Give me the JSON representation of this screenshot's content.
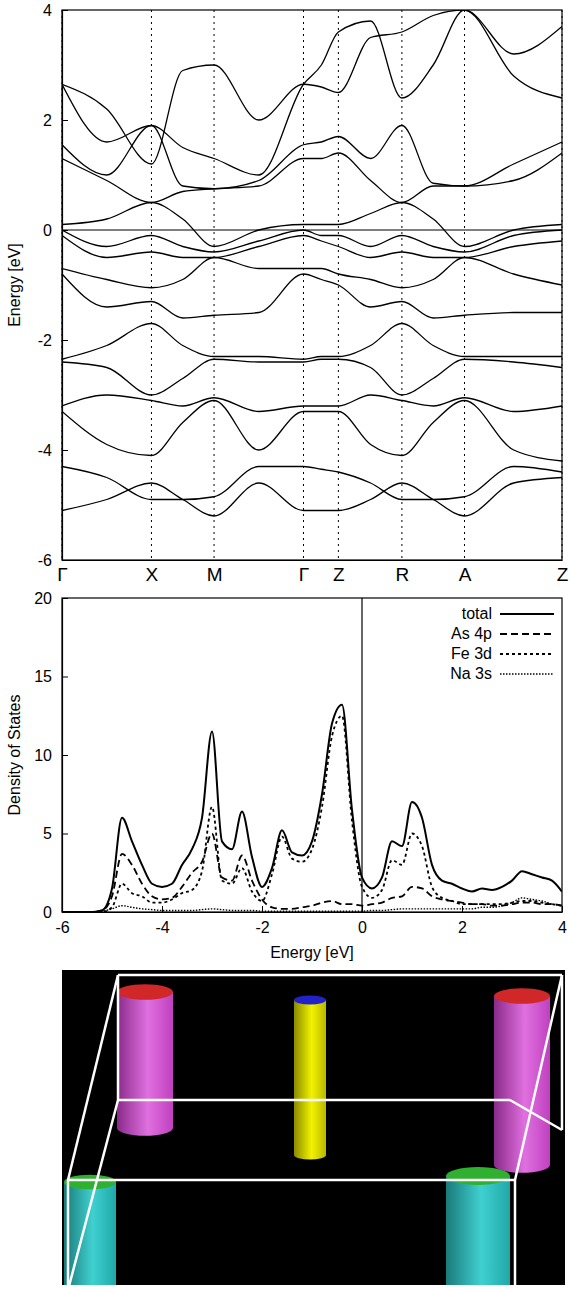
{
  "chart_data": [
    {
      "type": "line",
      "y_label": "Energy [eV]",
      "color": "#000000",
      "grid": "x",
      "hline": 0,
      "xlim": [
        0,
        5.59
      ],
      "xticks": [
        {
          "value": 0,
          "label": "Γ"
        },
        {
          "value": 1,
          "label": "X"
        },
        {
          "value": 1.7,
          "label": "M"
        },
        {
          "value": 2.7,
          "label": "Γ"
        },
        {
          "value": 3.09,
          "label": "Z"
        },
        {
          "value": 3.8,
          "label": "R"
        },
        {
          "value": 4.5,
          "label": "A"
        },
        {
          "value": 5.59,
          "label": "Z"
        }
      ],
      "ylim": [
        -6,
        4
      ],
      "yticks": [
        -6,
        -4,
        -2,
        0,
        2,
        4
      ],
      "x": [
        0,
        0.5,
        1,
        1.35,
        1.7,
        2.2,
        2.7,
        2.9,
        3.09,
        3.45,
        3.8,
        4.15,
        4.5,
        5.05,
        5.59
      ],
      "series": [
        {
          "values": [
            -5.1,
            -4.9,
            -4.6,
            -4.9,
            -5.2,
            -4.6,
            -5.1,
            -5.1,
            -5.1,
            -4.9,
            -4.6,
            -4.9,
            -5.2,
            -4.6,
            -4.5
          ]
        },
        {
          "values": [
            -4.3,
            -4.5,
            -4.9,
            -4.9,
            -4.85,
            -4.3,
            -4.3,
            -4.35,
            -4.4,
            -4.6,
            -4.9,
            -4.9,
            -4.85,
            -4.3,
            -4.4
          ]
        },
        {
          "values": [
            -3.3,
            -3.9,
            -4.1,
            -3.5,
            -3.1,
            -4.0,
            -3.3,
            -3.3,
            -3.3,
            -3.9,
            -4.1,
            -3.5,
            -3.1,
            -4.0,
            -4.2
          ]
        },
        {
          "values": [
            -3.2,
            -3.0,
            -3.1,
            -3.2,
            -3.05,
            -3.3,
            -3.2,
            -3.2,
            -3.2,
            -3.0,
            -3.1,
            -3.2,
            -3.05,
            -3.3,
            -3.2
          ]
        },
        {
          "values": [
            -2.4,
            -2.5,
            -3.0,
            -2.7,
            -2.35,
            -2.4,
            -2.4,
            -2.35,
            -2.35,
            -2.5,
            -3.0,
            -2.7,
            -2.35,
            -2.4,
            -2.5
          ]
        },
        {
          "values": [
            -2.35,
            -2.1,
            -1.7,
            -2.1,
            -2.3,
            -2.3,
            -2.35,
            -2.3,
            -2.3,
            -2.1,
            -1.7,
            -2.1,
            -2.3,
            -2.3,
            -2.3
          ]
        },
        {
          "values": [
            -0.8,
            -1.4,
            -1.3,
            -1.6,
            -1.55,
            -1.5,
            -0.8,
            -0.9,
            -1.0,
            -1.4,
            -1.3,
            -1.6,
            -1.55,
            -1.5,
            -1.5
          ]
        },
        {
          "values": [
            -0.7,
            -0.9,
            -1.05,
            -0.9,
            -0.5,
            -0.7,
            -0.7,
            -0.7,
            -0.8,
            -0.9,
            -1.05,
            -0.9,
            -0.5,
            -0.8,
            -1.0
          ]
        },
        {
          "values": [
            -0.1,
            -0.5,
            -0.4,
            -0.5,
            -0.5,
            -0.3,
            -0.1,
            -0.2,
            -0.3,
            -0.5,
            -0.4,
            -0.5,
            -0.5,
            -0.3,
            -0.2
          ]
        },
        {
          "values": [
            0.0,
            -0.3,
            -0.1,
            -0.3,
            -0.4,
            -0.2,
            0.0,
            -0.1,
            -0.1,
            -0.3,
            -0.1,
            -0.3,
            -0.4,
            -0.1,
            0.0
          ]
        },
        {
          "values": [
            0.1,
            0.2,
            0.5,
            0.2,
            -0.3,
            0.0,
            0.1,
            0.1,
            0.1,
            0.3,
            0.5,
            0.2,
            -0.3,
            0.0,
            0.1
          ]
        },
        {
          "values": [
            1.3,
            0.9,
            0.5,
            0.7,
            0.75,
            0.8,
            1.3,
            1.3,
            1.4,
            0.9,
            0.5,
            0.8,
            0.8,
            0.9,
            1.4
          ]
        },
        {
          "values": [
            1.55,
            1.0,
            1.9,
            0.8,
            0.75,
            0.9,
            1.55,
            1.6,
            1.7,
            1.3,
            1.9,
            0.85,
            0.8,
            1.2,
            1.6
          ]
        },
        {
          "values": [
            2.65,
            1.6,
            1.9,
            1.5,
            1.3,
            1.0,
            2.65,
            3.0,
            3.6,
            3.8,
            2.4,
            3.0,
            4.0,
            2.8,
            2.4
          ]
        },
        {
          "values": [
            2.65,
            2.2,
            1.2,
            2.9,
            3.0,
            2.0,
            2.65,
            2.6,
            2.5,
            3.5,
            3.6,
            3.9,
            4.0,
            3.2,
            3.7
          ]
        }
      ]
    },
    {
      "type": "line",
      "x_label": "Energy [eV]",
      "y_label": "Density of States",
      "color": "#000000",
      "legend": "top-right",
      "vline": 0,
      "xlim": [
        -6,
        4
      ],
      "xticks": [
        -6,
        -4,
        -2,
        0,
        2,
        4
      ],
      "ylim": [
        0,
        20
      ],
      "yticks": [
        0,
        5,
        10,
        15,
        20
      ],
      "x": [
        -6,
        -5.8,
        -5.6,
        -5.4,
        -5.2,
        -5,
        -4.8,
        -4.6,
        -4.4,
        -4.2,
        -4,
        -3.8,
        -3.6,
        -3.4,
        -3.2,
        -3,
        -2.8,
        -2.6,
        -2.4,
        -2.2,
        -2,
        -1.8,
        -1.6,
        -1.4,
        -1.2,
        -1,
        -0.8,
        -0.6,
        -0.4,
        -0.2,
        0,
        0.2,
        0.4,
        0.6,
        0.8,
        1,
        1.2,
        1.4,
        1.6,
        1.8,
        2,
        2.2,
        2.4,
        2.6,
        2.8,
        3,
        3.2,
        3.4,
        3.6,
        3.8,
        4
      ],
      "series": [
        {
          "name": "total",
          "line_style": "solid",
          "values": [
            0,
            0,
            0,
            0,
            0.1,
            1.5,
            6.0,
            4.5,
            3.0,
            1.8,
            1.6,
            1.8,
            3.0,
            4.0,
            6.0,
            11.5,
            4.5,
            4.0,
            6.4,
            3.5,
            1.6,
            2.8,
            5.2,
            3.8,
            3.6,
            4.5,
            7.5,
            12.0,
            13.2,
            6.5,
            2.2,
            1.5,
            2.2,
            4.5,
            4.2,
            7.0,
            6.0,
            3.0,
            2.0,
            1.8,
            1.5,
            1.3,
            1.5,
            1.4,
            1.6,
            2.0,
            2.6,
            2.4,
            2.2,
            2.0,
            1.3
          ]
        },
        {
          "name": "As 4p",
          "line_style": "dashed",
          "values": [
            0,
            0,
            0,
            0,
            0.1,
            1.0,
            3.7,
            3.0,
            1.8,
            1.0,
            0.8,
            0.9,
            1.6,
            2.5,
            3.2,
            5.0,
            2.2,
            2.0,
            3.6,
            2.0,
            0.8,
            0.3,
            0.2,
            0.2,
            0.3,
            0.4,
            0.6,
            0.7,
            0.5,
            0.5,
            0.4,
            0.5,
            0.6,
            0.9,
            1.0,
            1.6,
            1.5,
            1.0,
            0.8,
            0.7,
            0.6,
            0.5,
            0.5,
            0.4,
            0.4,
            0.5,
            0.6,
            0.6,
            0.5,
            0.5,
            0.4
          ]
        },
        {
          "name": "Fe 3d",
          "line_style": "dotted",
          "values": [
            0,
            0,
            0,
            0,
            0,
            0.3,
            1.8,
            1.2,
            1.0,
            0.6,
            0.6,
            0.8,
            1.2,
            1.4,
            2.6,
            6.7,
            2.0,
            1.8,
            2.8,
            1.3,
            0.7,
            2.4,
            4.8,
            3.4,
            3.2,
            4.0,
            6.7,
            11.2,
            12.5,
            5.8,
            1.6,
            0.9,
            1.4,
            3.3,
            3.0,
            5.0,
            4.2,
            1.6,
            0.9,
            0.7,
            0.5,
            0.5,
            0.5,
            0.5,
            0.5,
            0.6,
            0.7,
            0.7,
            0.6,
            0.5,
            0.4
          ]
        },
        {
          "name": "Na 3s",
          "line_style": "densely-dotted",
          "values": [
            0,
            0,
            0,
            0,
            0.05,
            0.2,
            0.4,
            0.3,
            0.2,
            0.15,
            0.1,
            0.1,
            0.1,
            0.1,
            0.15,
            0.2,
            0.15,
            0.1,
            0.1,
            0.1,
            0.05,
            0.05,
            0.05,
            0.05,
            0.05,
            0.05,
            0.05,
            0.05,
            0.05,
            0.05,
            0.05,
            0.1,
            0.1,
            0.15,
            0.2,
            0.2,
            0.2,
            0.2,
            0.2,
            0.2,
            0.2,
            0.2,
            0.3,
            0.3,
            0.4,
            0.6,
            0.9,
            0.8,
            0.7,
            0.5,
            0.4
          ]
        }
      ]
    }
  ]
}
